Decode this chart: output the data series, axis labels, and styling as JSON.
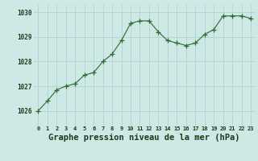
{
  "x": [
    0,
    1,
    2,
    3,
    4,
    5,
    6,
    7,
    8,
    9,
    10,
    11,
    12,
    13,
    14,
    15,
    16,
    17,
    18,
    19,
    20,
    21,
    22,
    23
  ],
  "y": [
    1026.0,
    1026.4,
    1026.85,
    1027.0,
    1027.1,
    1027.45,
    1027.55,
    1028.0,
    1028.3,
    1028.85,
    1029.55,
    1029.65,
    1029.65,
    1029.2,
    1028.85,
    1028.75,
    1028.65,
    1028.75,
    1029.1,
    1029.3,
    1029.85,
    1029.85,
    1029.85,
    1029.75
  ],
  "line_color": "#2d6a2d",
  "marker": "+",
  "marker_size": 4,
  "marker_lw": 0.9,
  "line_width": 0.8,
  "bg_color": "#cde8e5",
  "grid_color": "#aacfcc",
  "title": "Graphe pression niveau de la mer (hPa)",
  "title_fontsize": 7.5,
  "title_color": "#1a3a1a",
  "ylabel_ticks": [
    1026,
    1027,
    1028,
    1029,
    1030
  ],
  "ylim": [
    1025.4,
    1030.3
  ],
  "xlim": [
    -0.5,
    23.5
  ],
  "xtick_labels": [
    "0",
    "1",
    "2",
    "3",
    "4",
    "5",
    "6",
    "7",
    "8",
    "9",
    "10",
    "11",
    "12",
    "13",
    "14",
    "15",
    "16",
    "17",
    "18",
    "19",
    "20",
    "21",
    "22",
    "23"
  ]
}
